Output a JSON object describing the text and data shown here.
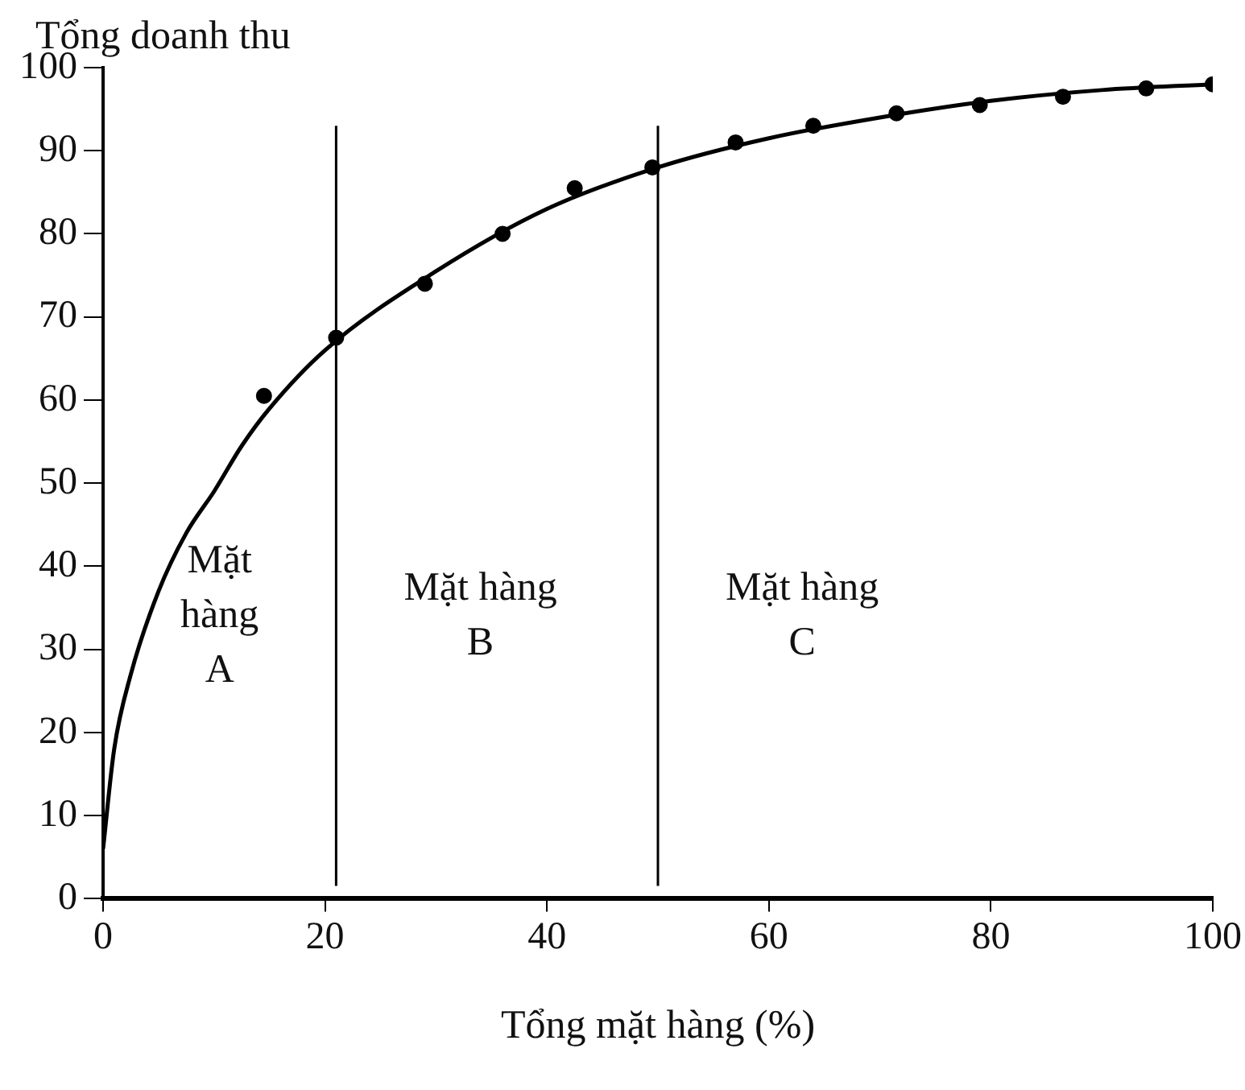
{
  "chart_data": {
    "type": "scatter",
    "xlabel": "Tổng mặt hàng (%)",
    "ylabel": "Tổng doanh thu",
    "xlim": [
      0,
      100
    ],
    "xticks": [
      0,
      20,
      40,
      60,
      80,
      100
    ],
    "ylim": [
      0,
      100
    ],
    "yticks": [
      0,
      10,
      20,
      30,
      40,
      50,
      60,
      70,
      80,
      90,
      100
    ],
    "grid": false,
    "legend": false,
    "series": [
      {
        "type": "line",
        "color": "#000000",
        "marker": "none",
        "x": [
          0,
          1,
          2.5,
          5,
          7.5,
          10,
          12.5,
          15,
          20,
          30,
          40,
          50,
          60,
          70,
          80,
          90,
          100
        ],
        "values": [
          6,
          18,
          27,
          37,
          44,
          49,
          54.5,
          59,
          66,
          75.5,
          83,
          88,
          91.5,
          94,
          96,
          97.3,
          98
        ]
      },
      {
        "type": "scatter",
        "color": "#000000",
        "marker": "circle",
        "x": [
          14.5,
          21,
          29,
          36,
          42.5,
          49.5,
          57,
          64,
          71.5,
          79,
          86.5,
          94,
          100
        ],
        "values": [
          60.5,
          67.5,
          74,
          80,
          85.5,
          88,
          91,
          93,
          94.5,
          95.5,
          96.5,
          97.5,
          98
        ]
      }
    ],
    "ref_lines": [
      {
        "axis": "x",
        "value": 21,
        "color": "#000000"
      },
      {
        "axis": "x",
        "value": 50,
        "color": "#000000"
      }
    ],
    "annotations": [
      "Mặt\nhàng\nA",
      "Mặt hàng\nB",
      "Mặt hàng\nC"
    ]
  }
}
